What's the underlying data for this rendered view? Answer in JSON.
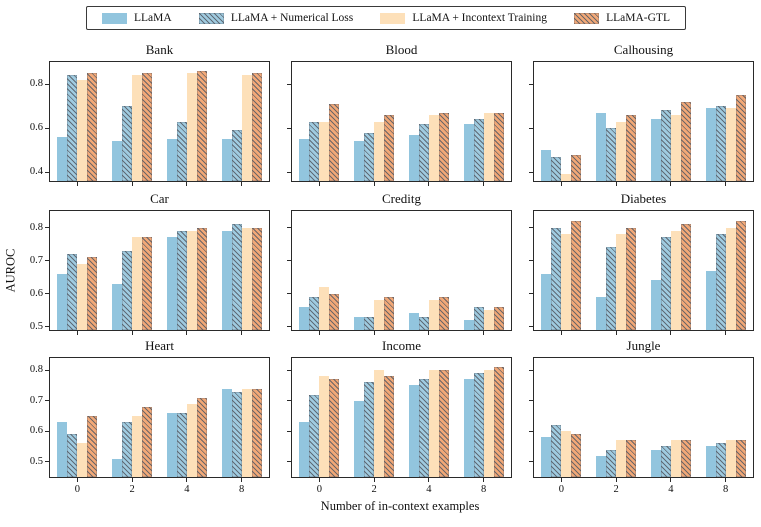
{
  "legend": {
    "items": [
      {
        "label": "LLaMA",
        "color": "#92c5de",
        "hatch": false
      },
      {
        "label": "LLaMA + Numerical Loss",
        "color": "#9fcbe0",
        "hatch": true
      },
      {
        "label": "LLaMA + Incontext Training",
        "color": "#fde0b9",
        "hatch": false
      },
      {
        "label": "LLaMA-GTL",
        "color": "#f2a877",
        "hatch": true
      }
    ]
  },
  "colors": {
    "blue": "#92c5de",
    "peach": "#fde0b9",
    "salmon": "#f2a877",
    "hatch_line": "#545a64",
    "spine": "#2a2a2a",
    "background": "#ffffff"
  },
  "chart_data": {
    "type": "bar",
    "layout": "3x3-grid",
    "grid_lines": false,
    "legend_position": "top-center",
    "xlabel": "Number of in-context examples",
    "ylabel": "AUROC",
    "categories": [
      "0",
      "2",
      "4",
      "8"
    ],
    "series_names": [
      "LLaMA",
      "LLaMA + Numerical Loss",
      "LLaMA + Incontext Training",
      "LLaMA-GTL"
    ],
    "subplots": [
      {
        "title": "Bank",
        "ylim": [
          0.36,
          0.9
        ],
        "yticks": [
          0.4,
          0.6,
          0.8
        ],
        "series": [
          {
            "name": "LLaMA",
            "values": [
              0.56,
              0.54,
              0.55,
              0.55
            ]
          },
          {
            "name": "LLaMA + Numerical Loss",
            "values": [
              0.84,
              0.7,
              0.63,
              0.59
            ]
          },
          {
            "name": "LLaMA + Incontext Training",
            "values": [
              0.82,
              0.84,
              0.85,
              0.84
            ]
          },
          {
            "name": "LLaMA-GTL",
            "values": [
              0.85,
              0.85,
              0.86,
              0.85
            ]
          }
        ]
      },
      {
        "title": "Blood",
        "ylim": [
          0.36,
          0.9
        ],
        "yticks": [
          0.4,
          0.6,
          0.8
        ],
        "series": [
          {
            "name": "LLaMA",
            "values": [
              0.55,
              0.54,
              0.57,
              0.62
            ]
          },
          {
            "name": "LLaMA + Numerical Loss",
            "values": [
              0.63,
              0.58,
              0.62,
              0.64
            ]
          },
          {
            "name": "LLaMA + Incontext Training",
            "values": [
              0.63,
              0.63,
              0.66,
              0.67
            ]
          },
          {
            "name": "LLaMA-GTL",
            "values": [
              0.71,
              0.66,
              0.67,
              0.67
            ]
          }
        ]
      },
      {
        "title": "Calhousing",
        "ylim": [
          0.36,
          0.9
        ],
        "yticks": [
          0.4,
          0.6,
          0.8
        ],
        "series": [
          {
            "name": "LLaMA",
            "values": [
              0.5,
              0.67,
              0.64,
              0.69
            ]
          },
          {
            "name": "LLaMA + Numerical Loss",
            "values": [
              0.47,
              0.6,
              0.68,
              0.7
            ]
          },
          {
            "name": "LLaMA + Incontext Training",
            "values": [
              0.39,
              0.63,
              0.66,
              0.69
            ]
          },
          {
            "name": "LLaMA-GTL",
            "values": [
              0.48,
              0.66,
              0.72,
              0.75
            ]
          }
        ]
      },
      {
        "title": "Car",
        "ylim": [
          0.49,
          0.85
        ],
        "yticks": [
          0.5,
          0.6,
          0.7,
          0.8
        ],
        "series": [
          {
            "name": "LLaMA",
            "values": [
              0.66,
              0.63,
              0.77,
              0.79
            ]
          },
          {
            "name": "LLaMA + Numerical Loss",
            "values": [
              0.72,
              0.73,
              0.79,
              0.81
            ]
          },
          {
            "name": "LLaMA + Incontext Training",
            "values": [
              0.69,
              0.77,
              0.79,
              0.8
            ]
          },
          {
            "name": "LLaMA-GTL",
            "values": [
              0.71,
              0.77,
              0.8,
              0.8
            ]
          }
        ]
      },
      {
        "title": "Creditg",
        "ylim": [
          0.49,
          0.85
        ],
        "yticks": [
          0.5,
          0.6,
          0.7,
          0.8
        ],
        "series": [
          {
            "name": "LLaMA",
            "values": [
              0.56,
              0.53,
              0.54,
              0.52
            ]
          },
          {
            "name": "LLaMA + Numerical Loss",
            "values": [
              0.59,
              0.53,
              0.53,
              0.56
            ]
          },
          {
            "name": "LLaMA + Incontext Training",
            "values": [
              0.62,
              0.58,
              0.58,
              0.55
            ]
          },
          {
            "name": "LLaMA-GTL",
            "values": [
              0.6,
              0.59,
              0.59,
              0.56
            ]
          }
        ]
      },
      {
        "title": "Diabetes",
        "ylim": [
          0.49,
          0.85
        ],
        "yticks": [
          0.5,
          0.6,
          0.7,
          0.8
        ],
        "series": [
          {
            "name": "LLaMA",
            "values": [
              0.66,
              0.59,
              0.64,
              0.67
            ]
          },
          {
            "name": "LLaMA + Numerical Loss",
            "values": [
              0.8,
              0.74,
              0.77,
              0.78
            ]
          },
          {
            "name": "LLaMA + Incontext Training",
            "values": [
              0.78,
              0.78,
              0.79,
              0.8
            ]
          },
          {
            "name": "LLaMA-GTL",
            "values": [
              0.82,
              0.8,
              0.81,
              0.82
            ]
          }
        ]
      },
      {
        "title": "Heart",
        "ylim": [
          0.45,
          0.84
        ],
        "yticks": [
          0.5,
          0.6,
          0.7,
          0.8
        ],
        "series": [
          {
            "name": "LLaMA",
            "values": [
              0.63,
              0.51,
              0.66,
              0.74
            ]
          },
          {
            "name": "LLaMA + Numerical Loss",
            "values": [
              0.59,
              0.63,
              0.66,
              0.73
            ]
          },
          {
            "name": "LLaMA + Incontext Training",
            "values": [
              0.56,
              0.65,
              0.69,
              0.74
            ]
          },
          {
            "name": "LLaMA-GTL",
            "values": [
              0.65,
              0.68,
              0.71,
              0.74
            ]
          }
        ]
      },
      {
        "title": "Income",
        "ylim": [
          0.45,
          0.84
        ],
        "yticks": [
          0.5,
          0.6,
          0.7,
          0.8
        ],
        "series": [
          {
            "name": "LLaMA",
            "values": [
              0.63,
              0.7,
              0.75,
              0.77
            ]
          },
          {
            "name": "LLaMA + Numerical Loss",
            "values": [
              0.72,
              0.76,
              0.77,
              0.79
            ]
          },
          {
            "name": "LLaMA + Incontext Training",
            "values": [
              0.78,
              0.8,
              0.8,
              0.8
            ]
          },
          {
            "name": "LLaMA-GTL",
            "values": [
              0.77,
              0.78,
              0.8,
              0.81
            ]
          }
        ]
      },
      {
        "title": "Jungle",
        "ylim": [
          0.45,
          0.84
        ],
        "yticks": [
          0.5,
          0.6,
          0.7,
          0.8
        ],
        "series": [
          {
            "name": "LLaMA",
            "values": [
              0.58,
              0.52,
              0.54,
              0.55
            ]
          },
          {
            "name": "LLaMA + Numerical Loss",
            "values": [
              0.62,
              0.54,
              0.55,
              0.56
            ]
          },
          {
            "name": "LLaMA + Incontext Training",
            "values": [
              0.6,
              0.57,
              0.57,
              0.57
            ]
          },
          {
            "name": "LLaMA-GTL",
            "values": [
              0.59,
              0.57,
              0.57,
              0.57
            ]
          }
        ]
      }
    ]
  }
}
